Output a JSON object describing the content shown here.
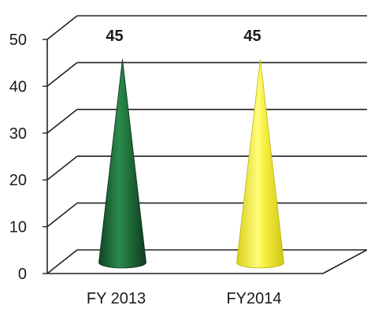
{
  "chart_data": {
    "type": "bar",
    "mark_shape": "cone",
    "style": "3d",
    "categories": [
      "FY 2013",
      "FY2014"
    ],
    "values": [
      45,
      45
    ],
    "data_labels": [
      "45",
      "45"
    ],
    "colors": [
      "#1f6b3a",
      "#f2ec3a"
    ],
    "ylim": [
      0,
      50
    ],
    "y_ticks": [
      "0",
      "10",
      "20",
      "30",
      "40",
      "50"
    ],
    "grid": true,
    "legend": "none",
    "title": "",
    "xlabel": "",
    "ylabel": ""
  }
}
